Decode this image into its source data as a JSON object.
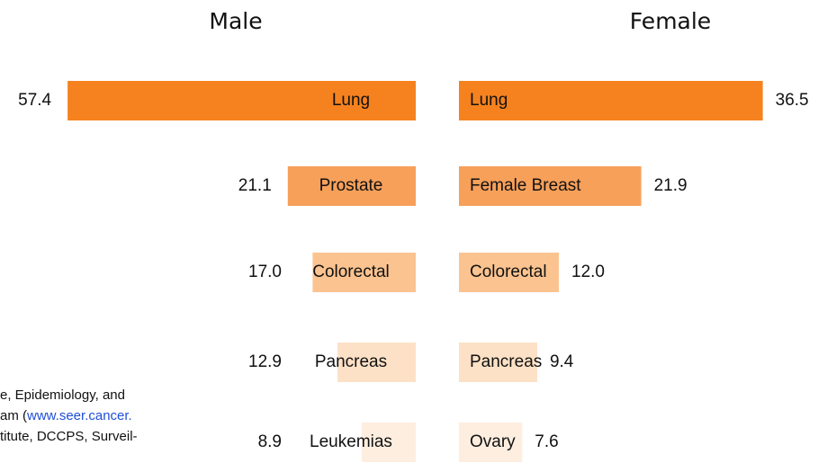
{
  "chart_data": [
    {
      "type": "bar",
      "title": "Male",
      "categories": [
        "Lung",
        "Prostate",
        "Colorectal",
        "Pancreas",
        "Leukemias"
      ],
      "values": [
        57.4,
        21.1,
        17.0,
        12.9,
        8.9
      ],
      "value_labels": [
        "57.4",
        "21.1",
        "17.0",
        "12.9",
        "8.9"
      ],
      "colors": [
        "#f5821f",
        "#f7a05a",
        "#fbc390",
        "#fde1c6",
        "#fdeee0"
      ]
    },
    {
      "type": "bar",
      "title": "Female",
      "categories": [
        "Lung",
        "Female Breast",
        "Colorectal",
        "Pancreas",
        "Ovary"
      ],
      "values": [
        36.5,
        21.9,
        12.0,
        9.4,
        7.6
      ],
      "value_labels": [
        "36.5",
        "21.9",
        "12.0",
        "9.4",
        "7.6"
      ],
      "colors": [
        "#f5821f",
        "#f7a05a",
        "#fbc390",
        "#fde1c6",
        "#fdeee0"
      ]
    }
  ],
  "footnote": [
    [
      "e, Epidemiology, and"
    ],
    [
      "am (",
      "www.seer.cancer."
    ],
    [
      "titute, DCCPS, Surveil-"
    ]
  ]
}
